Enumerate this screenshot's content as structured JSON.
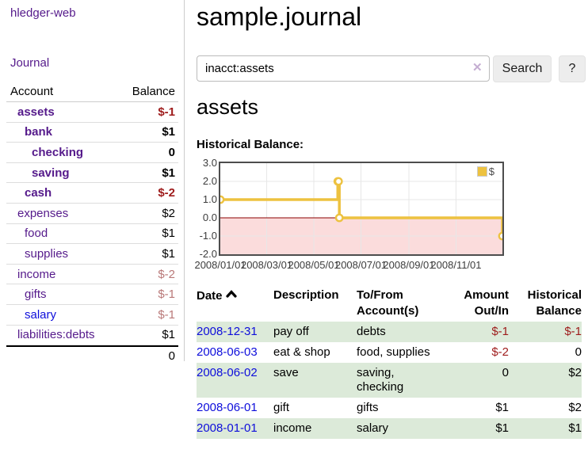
{
  "app": {
    "brand": "hledger-web",
    "nav_journal": "Journal"
  },
  "sidebar": {
    "columns": {
      "account": "Account",
      "balance": "Balance"
    },
    "accounts": [
      {
        "name": "assets",
        "balance": "$-1",
        "depth": 1,
        "matched": true,
        "name_style": "purple",
        "balance_style": "neg"
      },
      {
        "name": "bank",
        "balance": "$1",
        "depth": 2,
        "matched": true,
        "name_style": "purple",
        "balance_style": "pos"
      },
      {
        "name": "checking",
        "balance": "0",
        "depth": 3,
        "matched": true,
        "name_style": "purple",
        "balance_style": "pos"
      },
      {
        "name": "saving",
        "balance": "$1",
        "depth": 3,
        "matched": true,
        "name_style": "purple",
        "balance_style": "pos"
      },
      {
        "name": "cash",
        "balance": "$-2",
        "depth": 2,
        "matched": true,
        "name_style": "purple",
        "balance_style": "neg"
      },
      {
        "name": "expenses",
        "balance": "$2",
        "depth": 1,
        "matched": false,
        "name_style": "purple",
        "balance_style": "pos"
      },
      {
        "name": "food",
        "balance": "$1",
        "depth": 2,
        "matched": false,
        "name_style": "purple",
        "balance_style": "pos"
      },
      {
        "name": "supplies",
        "balance": "$1",
        "depth": 2,
        "matched": false,
        "name_style": "purple",
        "balance_style": "pos"
      },
      {
        "name": "income",
        "balance": "$-2",
        "depth": 1,
        "matched": false,
        "name_style": "purple",
        "balance_style": "dimneg"
      },
      {
        "name": "gifts",
        "balance": "$-1",
        "depth": 2,
        "matched": false,
        "name_style": "purple",
        "balance_style": "dimneg"
      },
      {
        "name": "salary",
        "balance": "$-1",
        "depth": 2,
        "matched": false,
        "name_style": "blue",
        "balance_style": "dimneg"
      },
      {
        "name": "liabilities:debts",
        "balance": "$1",
        "depth": 1,
        "matched": false,
        "name_style": "purple",
        "balance_style": "pos"
      }
    ],
    "total": "0"
  },
  "main": {
    "title": "sample.journal",
    "search": {
      "value": "inacct:assets",
      "clear_icon": "✕",
      "search_button": "Search",
      "help_button": "?"
    },
    "account_heading": "assets",
    "chart_heading": "Historical Balance:"
  },
  "chart_data": {
    "type": "line",
    "step": true,
    "title": "Historical Balance:",
    "legend": [
      {
        "label": "$",
        "color": "#edc240"
      }
    ],
    "legend_position": "top-right",
    "series": [
      {
        "name": "$",
        "color": "#edc240",
        "points": [
          [
            "2008-01-01",
            1
          ],
          [
            "2008-06-01",
            2
          ],
          [
            "2008-06-02",
            2
          ],
          [
            "2008-06-03",
            0
          ],
          [
            "2008-12-31",
            -1
          ]
        ]
      }
    ],
    "ylim": [
      -2,
      3
    ],
    "ytick_labels": [
      "3.0",
      "2.0",
      "1.0",
      "0.0",
      "-1.0",
      "-2.0"
    ],
    "xticks": [
      "2008-01-01",
      "2008-03-01",
      "2008-05-01",
      "2008-07-01",
      "2008-09-01",
      "2008-11-01"
    ],
    "xtick_labels": [
      "2008/01/01",
      "2008/03/01",
      "2008/05/01",
      "2008/07/01",
      "2008/09/01",
      "2008/11/01"
    ],
    "x_domain": [
      "2008-01-01",
      "2008-12-31"
    ],
    "grid": true,
    "gridline_color": "#e7e7e7",
    "negative_region_fill": "#fbdcdc",
    "zero_line_color": "#8b0000",
    "frame_color": "#4d4d4d"
  },
  "transactions": {
    "headers": {
      "date": "Date",
      "description": "Description",
      "accounts": "To/From Account(s)",
      "amount": "Amount Out/In",
      "balance": "Historical Balance"
    },
    "sort_icon": "chevron-up",
    "rows": [
      {
        "date": "2008-12-31",
        "description": "pay off",
        "accounts": "debts",
        "amount": "$-1",
        "balance": "$-1",
        "amount_neg": true,
        "balance_neg": true,
        "shaded": true
      },
      {
        "date": "2008-06-03",
        "description": "eat & shop",
        "accounts": "food, supplies",
        "amount": "$-2",
        "balance": "0",
        "amount_neg": true,
        "balance_neg": false,
        "shaded": false
      },
      {
        "date": "2008-06-02",
        "description": "save",
        "accounts": "saving, checking",
        "amount": "0",
        "balance": "$2",
        "amount_neg": false,
        "balance_neg": false,
        "shaded": true
      },
      {
        "date": "2008-06-01",
        "description": "gift",
        "accounts": "gifts",
        "amount": "$1",
        "balance": "$2",
        "amount_neg": false,
        "balance_neg": false,
        "shaded": false
      },
      {
        "date": "2008-01-01",
        "description": "income",
        "accounts": "salary",
        "amount": "$1",
        "balance": "$1",
        "amount_neg": false,
        "balance_neg": false,
        "shaded": true
      }
    ]
  },
  "colors": {
    "link_purple": "#551a8b",
    "link_blue": "#0e0edb",
    "negative": "#9e1b1b",
    "negative_dim": "#b97878",
    "row_shade_green": "#dcead9",
    "accent_yellow": "#edc240",
    "zero_line": "#8b0000",
    "negative_region": "#fbdcdc"
  }
}
